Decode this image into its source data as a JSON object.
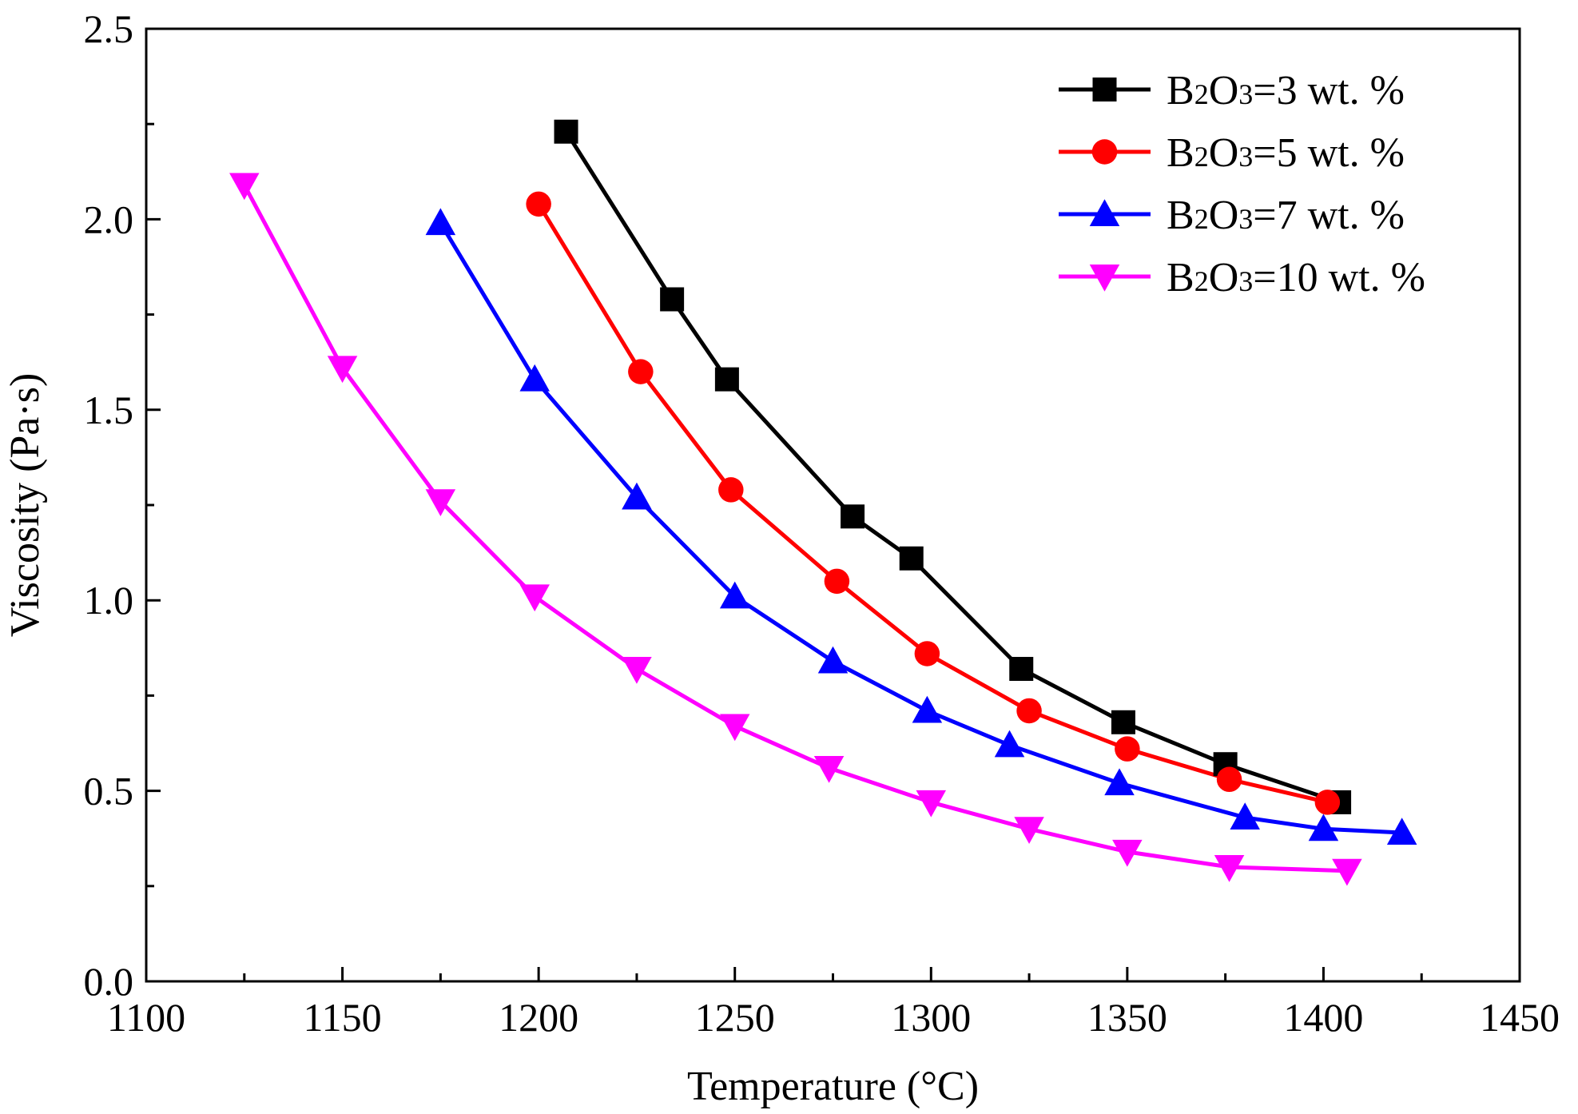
{
  "chart_data": {
    "type": "line",
    "xlabel": "Temperature (°C)",
    "ylabel": "Viscosity (Pa·s)",
    "xlim": [
      1100,
      1450
    ],
    "ylim": [
      0.0,
      2.5
    ],
    "x_ticks": [
      "1100",
      "1150",
      "1200",
      "1250",
      "1300",
      "1350",
      "1400",
      "1450"
    ],
    "y_ticks": [
      "0.0",
      "0.5",
      "1.0",
      "1.5",
      "2.0",
      "2.5"
    ],
    "x_tick_values": [
      1100,
      1150,
      1200,
      1250,
      1300,
      1350,
      1400,
      1450
    ],
    "y_tick_values": [
      0.0,
      0.5,
      1.0,
      1.5,
      2.0,
      2.5
    ],
    "grid": false,
    "legend_position": "top-right",
    "series": [
      {
        "name": "B2O3=3 wt. %",
        "legend": {
          "pre": "B",
          "sub1": "2",
          "mid": "O",
          "sub2": "3",
          "post": "=3 wt. %"
        },
        "color": "#000000",
        "marker": "square",
        "x": [
          1207,
          1234,
          1248,
          1280,
          1295,
          1323,
          1349,
          1375,
          1404
        ],
        "y": [
          2.23,
          1.79,
          1.58,
          1.22,
          1.11,
          0.82,
          0.68,
          0.57,
          0.47
        ]
      },
      {
        "name": "B2O3=5 wt. %",
        "legend": {
          "pre": "B",
          "sub1": "2",
          "mid": "O",
          "sub2": "3",
          "post": "=5 wt. %"
        },
        "color": "#ff0000",
        "marker": "circle",
        "x": [
          1200,
          1226,
          1249,
          1276,
          1299,
          1325,
          1350,
          1376,
          1401
        ],
        "y": [
          2.04,
          1.6,
          1.29,
          1.05,
          0.86,
          0.71,
          0.61,
          0.53,
          0.47
        ]
      },
      {
        "name": "B2O3=7 wt. %",
        "legend": {
          "pre": "B",
          "sub1": "2",
          "mid": "O",
          "sub2": "3",
          "post": "=7 wt. %"
        },
        "color": "#0000ff",
        "marker": "triangle-up",
        "x": [
          1175,
          1199,
          1225,
          1250,
          1275,
          1299,
          1320,
          1348,
          1380,
          1400,
          1420
        ],
        "y": [
          1.99,
          1.58,
          1.27,
          1.01,
          0.84,
          0.71,
          0.62,
          0.52,
          0.43,
          0.4,
          0.39
        ]
      },
      {
        "name": "B2O3=10 wt. %",
        "legend": {
          "pre": "B",
          "sub1": "2",
          "mid": "O",
          "sub2": "3",
          "post": "=10 wt. %"
        },
        "color": "#ff00ff",
        "marker": "triangle-down",
        "x": [
          1125,
          1150,
          1175,
          1199,
          1225,
          1250,
          1274,
          1300,
          1325,
          1350,
          1376,
          1406
        ],
        "y": [
          2.09,
          1.61,
          1.26,
          1.01,
          0.82,
          0.67,
          0.56,
          0.47,
          0.4,
          0.34,
          0.3,
          0.29
        ]
      }
    ]
  }
}
